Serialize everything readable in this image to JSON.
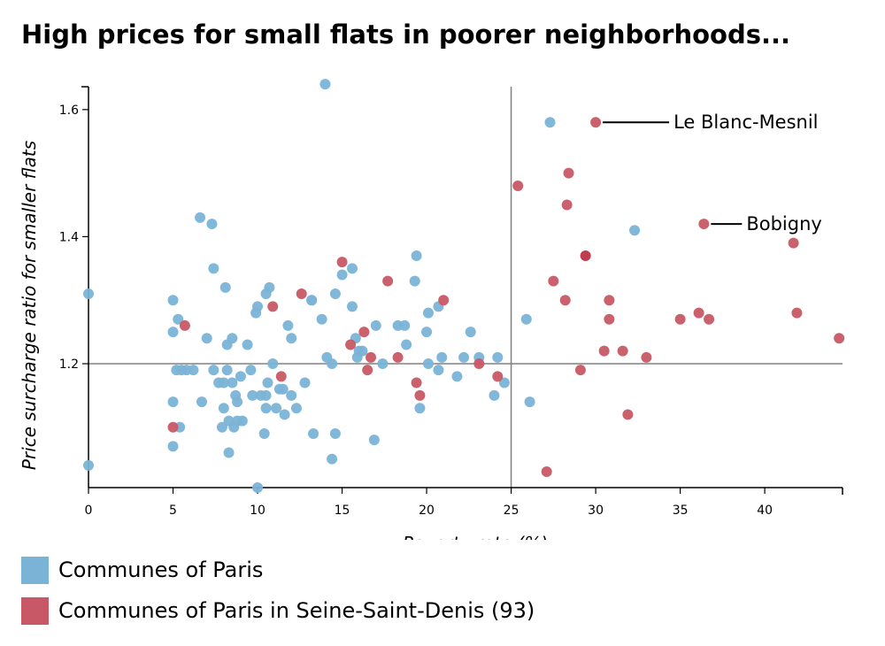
{
  "colors": {
    "paris": "#7ab3d6",
    "seine": "#c95866",
    "highlight": "#bb3344",
    "axis": "#000000",
    "refline": "#808080"
  },
  "chart_data": {
    "type": "scatter",
    "title": "High prices for small flats in poorer neighborhoods...",
    "xlabel": "Poverty rate (%)",
    "ylabel": "Price surcharge ratio for smaller flats",
    "xlim": [
      0,
      44.6
    ],
    "ylim": [
      1.005,
      1.636
    ],
    "x_ticks": [
      0,
      5,
      10,
      15,
      20,
      25,
      30,
      35,
      40
    ],
    "y_ticks": [
      1.2,
      1.4,
      1.6
    ],
    "x_tick_labels": [
      "0",
      "5",
      "10",
      "15",
      "20",
      "25",
      "30",
      "35",
      "40"
    ],
    "y_tick_labels": [
      "1.2",
      "1.4",
      "1.6"
    ],
    "reference_lines": {
      "x": 25,
      "y": 1.2
    },
    "grid": false,
    "legend_position": "bottom-left",
    "series": [
      {
        "name": "Communes of Paris",
        "points": [
          [
            0,
            1.31
          ],
          [
            0,
            1.04
          ],
          [
            5,
            1.3
          ],
          [
            5,
            1.25
          ],
          [
            5,
            1.14
          ],
          [
            5,
            1.07
          ],
          [
            5.2,
            1.19
          ],
          [
            5.3,
            1.27
          ],
          [
            5.4,
            1.1
          ],
          [
            5.5,
            1.19
          ],
          [
            5.8,
            1.19
          ],
          [
            6.2,
            1.19
          ],
          [
            6.6,
            1.43
          ],
          [
            6.7,
            1.14
          ],
          [
            7,
            1.24
          ],
          [
            7.3,
            1.42
          ],
          [
            7.4,
            1.35
          ],
          [
            7.4,
            1.19
          ],
          [
            7.7,
            1.17
          ],
          [
            7.9,
            1.1
          ],
          [
            8,
            1.17
          ],
          [
            8,
            1.13
          ],
          [
            8.1,
            1.32
          ],
          [
            8.2,
            1.23
          ],
          [
            8.2,
            1.19
          ],
          [
            8.3,
            1.06
          ],
          [
            8.3,
            1.11
          ],
          [
            8.5,
            1.24
          ],
          [
            8.5,
            1.17
          ],
          [
            8.6,
            1.1
          ],
          [
            8.7,
            1.15
          ],
          [
            8.8,
            1.14
          ],
          [
            8.8,
            1.11
          ],
          [
            9,
            1.18
          ],
          [
            9.1,
            1.11
          ],
          [
            9.4,
            1.23
          ],
          [
            9.6,
            1.19
          ],
          [
            9.7,
            1.15
          ],
          [
            9.9,
            1.28
          ],
          [
            10,
            1.29
          ],
          [
            10,
            1.005
          ],
          [
            10.2,
            1.15
          ],
          [
            10.4,
            1.09
          ],
          [
            10.5,
            1.31
          ],
          [
            10.5,
            1.15
          ],
          [
            10.5,
            1.13
          ],
          [
            10.6,
            1.17
          ],
          [
            10.7,
            1.32
          ],
          [
            10.9,
            1.2
          ],
          [
            11.1,
            1.13
          ],
          [
            11.3,
            1.16
          ],
          [
            11.5,
            1.16
          ],
          [
            11.6,
            1.12
          ],
          [
            11.8,
            1.26
          ],
          [
            12,
            1.24
          ],
          [
            12,
            1.15
          ],
          [
            12.3,
            1.13
          ],
          [
            12.8,
            1.17
          ],
          [
            13.2,
            1.3
          ],
          [
            13.2,
            1.3
          ],
          [
            13.3,
            1.09
          ],
          [
            13.8,
            1.27
          ],
          [
            14,
            1.64
          ],
          [
            14.1,
            1.21
          ],
          [
            14.4,
            1.05
          ],
          [
            14.4,
            1.2
          ],
          [
            14.6,
            1.31
          ],
          [
            14.6,
            1.09
          ],
          [
            15,
            1.34
          ],
          [
            15.6,
            1.29
          ],
          [
            15.6,
            1.35
          ],
          [
            15.8,
            1.24
          ],
          [
            15.9,
            1.21
          ],
          [
            16,
            1.22
          ],
          [
            16.2,
            1.22
          ],
          [
            17,
            1.26
          ],
          [
            16.9,
            1.08
          ],
          [
            17.4,
            1.2
          ],
          [
            18.3,
            1.26
          ],
          [
            18.7,
            1.26
          ],
          [
            18.8,
            1.23
          ],
          [
            19.3,
            1.33
          ],
          [
            19.4,
            1.37
          ],
          [
            19.6,
            1.13
          ],
          [
            20,
            1.25
          ],
          [
            20.1,
            1.28
          ],
          [
            20.1,
            1.2
          ],
          [
            20.7,
            1.29
          ],
          [
            20.7,
            1.19
          ],
          [
            20.9,
            1.21
          ],
          [
            21.8,
            1.18
          ],
          [
            22.2,
            1.21
          ],
          [
            22.6,
            1.25
          ],
          [
            23.1,
            1.21
          ],
          [
            24,
            1.15
          ],
          [
            24.2,
            1.21
          ],
          [
            24.6,
            1.17
          ],
          [
            25.9,
            1.27
          ],
          [
            26.1,
            1.14
          ],
          [
            27.3,
            1.58
          ],
          [
            32.3,
            1.41
          ]
        ]
      },
      {
        "name": "Communes of Paris in Seine-Saint-Denis (93)",
        "points": [
          [
            5,
            1.1
          ],
          [
            5.7,
            1.26
          ],
          [
            10.9,
            1.29
          ],
          [
            11.4,
            1.18
          ],
          [
            12.6,
            1.31
          ],
          [
            15,
            1.36
          ],
          [
            15.5,
            1.23
          ],
          [
            16.3,
            1.25
          ],
          [
            16.5,
            1.19
          ],
          [
            16.7,
            1.21
          ],
          [
            17.7,
            1.33
          ],
          [
            18.3,
            1.21
          ],
          [
            19.4,
            1.17
          ],
          [
            19.6,
            1.15
          ],
          [
            21,
            1.3
          ],
          [
            23.1,
            1.2
          ],
          [
            24.2,
            1.18
          ],
          [
            25.4,
            1.48
          ],
          [
            27.1,
            1.03
          ],
          [
            27.5,
            1.33
          ],
          [
            28.2,
            1.3
          ],
          [
            28.3,
            1.45
          ],
          [
            28.4,
            1.5
          ],
          [
            29.1,
            1.19
          ],
          [
            29.4,
            1.37
          ],
          [
            30,
            1.58
          ],
          [
            30.5,
            1.22
          ],
          [
            30.8,
            1.3
          ],
          [
            30.8,
            1.27
          ],
          [
            31.6,
            1.22
          ],
          [
            31.9,
            1.12
          ],
          [
            33,
            1.21
          ],
          [
            35,
            1.27
          ],
          [
            36.1,
            1.28
          ],
          [
            36.4,
            1.42
          ],
          [
            36.7,
            1.27
          ],
          [
            41.7,
            1.39
          ],
          [
            41.9,
            1.28
          ],
          [
            44.4,
            1.24
          ]
        ]
      }
    ],
    "annotations": [
      {
        "text": "Le Blanc-Mesnil",
        "x": 30,
        "y": 1.58
      },
      {
        "text": "Bobigny",
        "x": 36.4,
        "y": 1.42
      }
    ]
  }
}
